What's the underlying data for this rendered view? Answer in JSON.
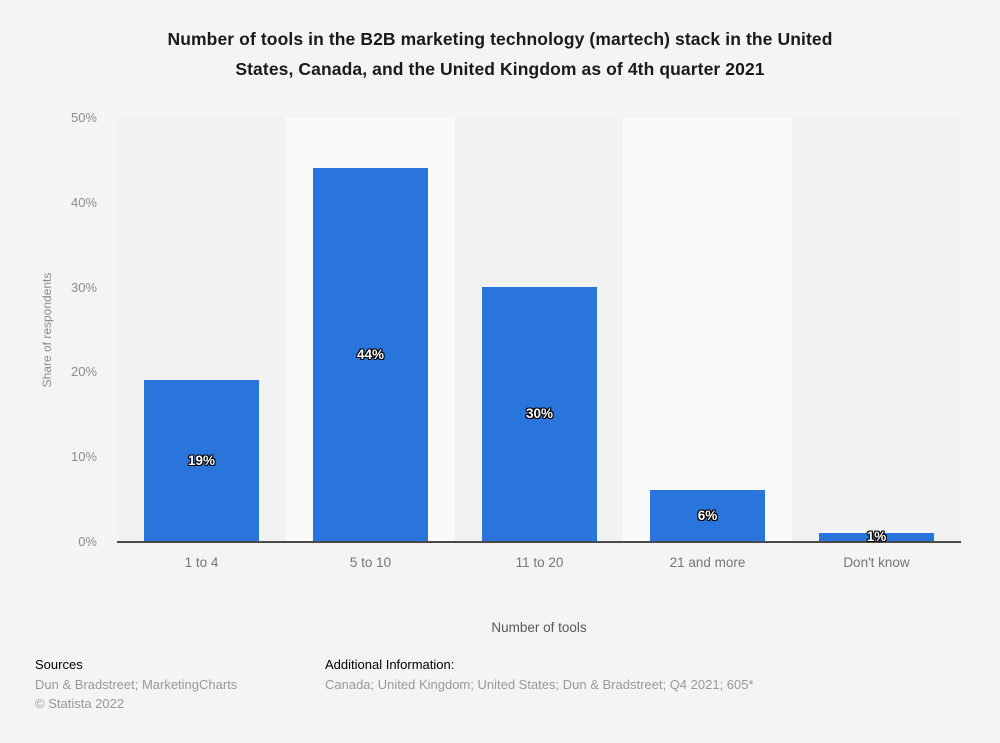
{
  "title": {
    "lines": [
      "Number of tools in the B2B marketing technology (martech) stack in the United",
      "States, Canada, and the United Kingdom as of 4th quarter 2021"
    ]
  },
  "axes": {
    "ylabel": "Share of respondents",
    "xlabel": "Number of tools",
    "yticks": [
      "50%",
      "40%",
      "30%",
      "20%",
      "10%",
      "0%"
    ]
  },
  "bars": [
    {
      "category": "1 to 4",
      "value": 19,
      "value_label": "19%"
    },
    {
      "category": "5 to 10",
      "value": 44,
      "value_label": "44%"
    },
    {
      "category": "11 to 20",
      "value": 30,
      "value_label": "30%"
    },
    {
      "category": "21 and more",
      "value": 6,
      "value_label": "6%"
    },
    {
      "category": "Don't know",
      "value": 1,
      "value_label": "1%"
    }
  ],
  "chart_data": {
    "type": "bar",
    "title": "Number of tools in the B2B marketing technology (martech) stack in the United States, Canada, and the United Kingdom as of 4th quarter 2021",
    "categories": [
      "1 to 4",
      "5 to 10",
      "11 to 20",
      "21 and more",
      "Don't know"
    ],
    "values": [
      19,
      44,
      30,
      6,
      1
    ],
    "data_labels": [
      "19%",
      "44%",
      "30%",
      "6%",
      "1%"
    ],
    "xlabel": "Number of tools",
    "ylabel": "Share of respondents",
    "ylim": [
      0,
      50
    ],
    "ytick_interval": 10,
    "grid": "dotted horizontal lines",
    "legend": "none",
    "bar_color": "#2a75dc"
  },
  "footer": {
    "sources_heading": "Sources",
    "sources_line": "Dun & Bradstreet; MarketingCharts",
    "copyright": "© Statista 2022",
    "additional_heading": "Additional Information:",
    "additional_line": "Canada; United Kingdom; United States; Dun & Bradstreet; Q4 2021; 605*"
  },
  "colors": {
    "bar": "#2a75dc",
    "background": "#f4f4f4",
    "band_light": "#fafafa",
    "band_dark": "#f2f2f2",
    "gridline": "#c9c9c9",
    "axis_line": "#4a4a4a",
    "title_text": "#1a1a1a",
    "tick_text": "#8c8c8c",
    "category_text": "#757575",
    "footer_muted": "#999999",
    "data_label_text": "#ffffff",
    "data_label_outline": "#000000"
  }
}
